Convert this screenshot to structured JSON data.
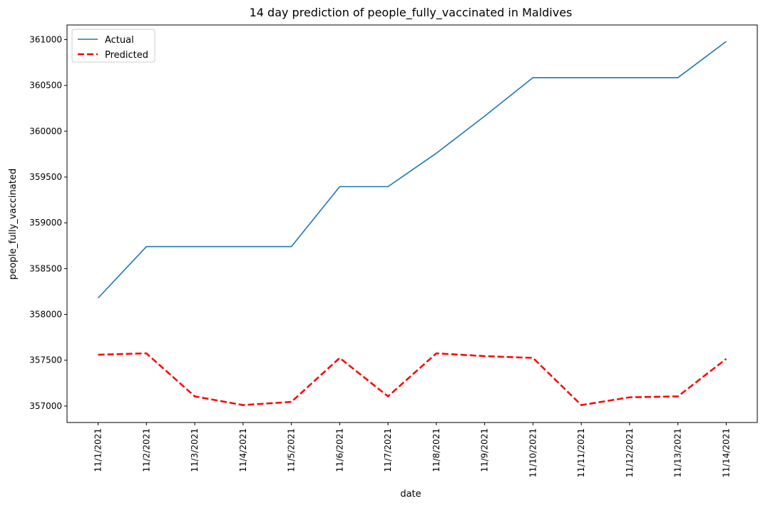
{
  "chart_data": {
    "type": "line",
    "title": "14 day prediction of people_fully_vaccinated in Maldives",
    "xlabel": "date",
    "ylabel": "people_fully_vaccinated",
    "x": [
      "11/1/2021",
      "11/2/2021",
      "11/3/2021",
      "11/4/2021",
      "11/5/2021",
      "11/6/2021",
      "11/7/2021",
      "11/8/2021",
      "11/9/2021",
      "11/10/2021",
      "11/11/2021",
      "11/12/2021",
      "11/13/2021",
      "11/14/2021"
    ],
    "ylim": [
      356820,
      361160
    ],
    "yticks": [
      357000,
      357500,
      358000,
      358500,
      359000,
      359500,
      360000,
      360500,
      361000
    ],
    "grid": false,
    "legend_position": "top-left",
    "series": [
      {
        "name": "Actual",
        "color": "#1f77b4",
        "dash": "solid",
        "values": [
          358180,
          358740,
          358740,
          358740,
          358740,
          359395,
          359395,
          359760,
          360165,
          360585,
          360585,
          360585,
          360585,
          360980
        ]
      },
      {
        "name": "Predicted",
        "color": "#ff0000",
        "dash": "dashed",
        "values": [
          357560,
          357575,
          357105,
          357010,
          357045,
          357525,
          357105,
          357575,
          357545,
          357525,
          357010,
          357095,
          357105,
          357515
        ]
      }
    ]
  }
}
